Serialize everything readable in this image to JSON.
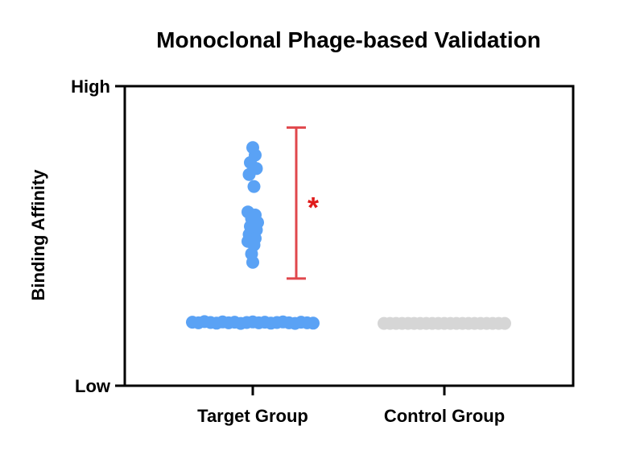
{
  "chart_data": {
    "type": "scatter",
    "title": "Monoclonal Phage-based Validation",
    "xlabel": "",
    "ylabel": "Binding Affinity",
    "ylim": [
      0,
      1
    ],
    "y_tick_labels": [
      {
        "value": 0,
        "label": "Low"
      },
      {
        "value": 1,
        "label": "High"
      }
    ],
    "categories": [
      "Target Group",
      "Control Group"
    ],
    "grid": false,
    "legend": "none",
    "colors": {
      "target": "#5aa2f5",
      "control": "#d6d6d6",
      "significance": "#e0474c",
      "star": "#e01b1b",
      "axis": "#000000"
    },
    "series": [
      {
        "category": "Target Group",
        "points": [
          {
            "offset": -0.5,
            "y": 0.212
          },
          {
            "offset": -0.45,
            "y": 0.21
          },
          {
            "offset": -0.4,
            "y": 0.214
          },
          {
            "offset": -0.35,
            "y": 0.211
          },
          {
            "offset": -0.3,
            "y": 0.209
          },
          {
            "offset": -0.25,
            "y": 0.213
          },
          {
            "offset": -0.2,
            "y": 0.21
          },
          {
            "offset": -0.15,
            "y": 0.212
          },
          {
            "offset": -0.1,
            "y": 0.208
          },
          {
            "offset": -0.05,
            "y": 0.211
          },
          {
            "offset": 0.0,
            "y": 0.213
          },
          {
            "offset": 0.05,
            "y": 0.21
          },
          {
            "offset": 0.1,
            "y": 0.212
          },
          {
            "offset": 0.15,
            "y": 0.209
          },
          {
            "offset": 0.2,
            "y": 0.211
          },
          {
            "offset": 0.25,
            "y": 0.213
          },
          {
            "offset": 0.3,
            "y": 0.21
          },
          {
            "offset": 0.35,
            "y": 0.208
          },
          {
            "offset": 0.4,
            "y": 0.212
          },
          {
            "offset": 0.45,
            "y": 0.21
          },
          {
            "offset": 0.5,
            "y": 0.209
          },
          {
            "offset": 0.0,
            "y": 0.795
          },
          {
            "offset": 0.02,
            "y": 0.77
          },
          {
            "offset": -0.02,
            "y": 0.745
          },
          {
            "offset": 0.03,
            "y": 0.725
          },
          {
            "offset": -0.03,
            "y": 0.705
          },
          {
            "offset": 0.01,
            "y": 0.665
          },
          {
            "offset": -0.04,
            "y": 0.58
          },
          {
            "offset": 0.02,
            "y": 0.57
          },
          {
            "offset": -0.01,
            "y": 0.558
          },
          {
            "offset": 0.04,
            "y": 0.545
          },
          {
            "offset": -0.02,
            "y": 0.532
          },
          {
            "offset": 0.03,
            "y": 0.52
          },
          {
            "offset": -0.03,
            "y": 0.505
          },
          {
            "offset": 0.02,
            "y": 0.492
          },
          {
            "offset": -0.04,
            "y": 0.482
          },
          {
            "offset": 0.01,
            "y": 0.47
          },
          {
            "offset": -0.01,
            "y": 0.44
          },
          {
            "offset": 0.0,
            "y": 0.412
          }
        ]
      },
      {
        "category": "Control Group",
        "points": [
          {
            "offset": -0.5,
            "y": 0.208
          },
          {
            "offset": -0.45,
            "y": 0.208
          },
          {
            "offset": -0.4,
            "y": 0.208
          },
          {
            "offset": -0.35,
            "y": 0.208
          },
          {
            "offset": -0.3,
            "y": 0.208
          },
          {
            "offset": -0.25,
            "y": 0.208
          },
          {
            "offset": -0.2,
            "y": 0.208
          },
          {
            "offset": -0.15,
            "y": 0.208
          },
          {
            "offset": -0.1,
            "y": 0.208
          },
          {
            "offset": -0.05,
            "y": 0.208
          },
          {
            "offset": 0.0,
            "y": 0.208
          },
          {
            "offset": 0.05,
            "y": 0.208
          },
          {
            "offset": 0.1,
            "y": 0.208
          },
          {
            "offset": 0.15,
            "y": 0.208
          },
          {
            "offset": 0.2,
            "y": 0.208
          },
          {
            "offset": 0.25,
            "y": 0.208
          },
          {
            "offset": 0.3,
            "y": 0.208
          },
          {
            "offset": 0.35,
            "y": 0.208
          },
          {
            "offset": 0.4,
            "y": 0.208
          },
          {
            "offset": 0.45,
            "y": 0.208
          },
          {
            "offset": 0.5,
            "y": 0.208
          }
        ]
      }
    ],
    "annotations": [
      {
        "type": "significance-bracket",
        "category": "Target Group",
        "y_top": 0.862,
        "y_bottom": 0.358,
        "label": "*"
      }
    ]
  }
}
